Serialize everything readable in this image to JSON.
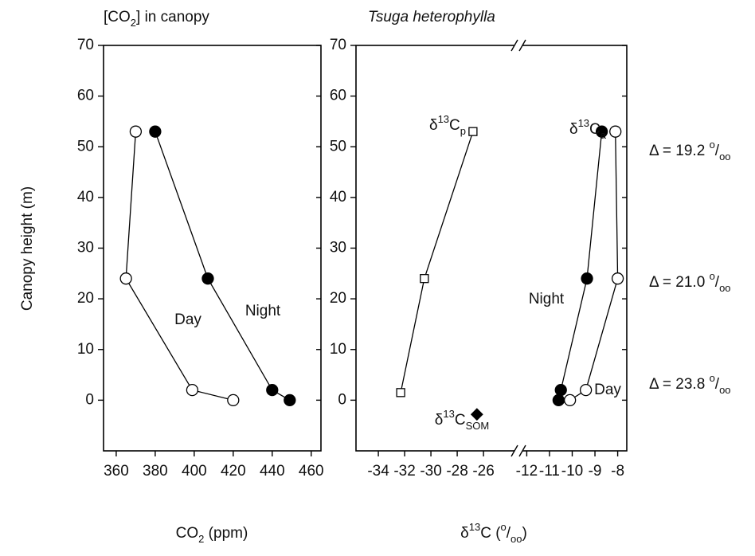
{
  "chart_data": [
    {
      "type": "line",
      "title": [
        {
          "text": "[CO"
        },
        {
          "text": "2",
          "script": "sub"
        },
        {
          "text": "] in canopy"
        }
      ],
      "x_label": [
        {
          "text": "CO"
        },
        {
          "text": "2",
          "script": "sub"
        },
        {
          "text": " (ppm)"
        }
      ],
      "y_label": "Canopy height (m)",
      "xlim": [
        353.5,
        465
      ],
      "xticks": [
        360,
        380,
        400,
        420,
        440,
        460
      ],
      "ylim": [
        -10,
        70
      ],
      "yticks": [
        0,
        10,
        20,
        30,
        40,
        50,
        60,
        70
      ],
      "series": [
        {
          "name": "Day",
          "marker": "open-circle",
          "color": "#000000",
          "x": [
            370,
            365,
            399,
            420
          ],
          "values": [
            53,
            24,
            2,
            0
          ]
        },
        {
          "name": "Night",
          "marker": "filled-circle",
          "color": "#000000",
          "x": [
            380,
            407,
            440,
            449
          ],
          "values": [
            53,
            24,
            2,
            0
          ]
        }
      ]
    },
    {
      "type": "line",
      "title": [
        {
          "text": "Tsuga heterophylla",
          "style": "italic"
        }
      ],
      "x_label": [
        {
          "text": "δ"
        },
        {
          "text": "13",
          "script": "sup"
        },
        {
          "text": "C ("
        },
        {
          "text": "o",
          "script": "sup"
        },
        {
          "text": "/"
        },
        {
          "text": "oo",
          "script": "sub"
        },
        {
          "text": ")"
        }
      ],
      "x_segments": [
        {
          "xlim": [
            -35.7,
            -23.4
          ],
          "xticks": [
            -34,
            -32,
            -30,
            -28,
            -26
          ]
        },
        {
          "xlim": [
            -12.4,
            -7.6
          ],
          "xticks": [
            -12,
            -11,
            -10,
            -9,
            -8
          ]
        }
      ],
      "axis_break": true,
      "ylim": [
        -10,
        70
      ],
      "yticks": [
        0,
        10,
        20,
        30,
        40,
        50,
        60,
        70
      ],
      "series": [
        {
          "label": [
            {
              "text": "δ"
            },
            {
              "text": "13",
              "script": "sup"
            },
            {
              "text": "C"
            },
            {
              "text": "p",
              "script": "sub"
            }
          ],
          "marker": "open-square",
          "color": "#000000",
          "segment": 0,
          "x": [
            -32.3,
            -30.5,
            -26.8
          ],
          "values": [
            1.5,
            24,
            53
          ]
        },
        {
          "name": "Night",
          "marker": "filled-circle",
          "color": "#000000",
          "segment": 1,
          "x": [
            -8.7,
            -9.35,
            -10.5,
            -10.6
          ],
          "values": [
            53,
            24,
            2,
            0
          ]
        },
        {
          "name": "Day",
          "marker": "open-circle",
          "color": "#000000",
          "segment": 1,
          "x": [
            -8.1,
            -8.0,
            -9.4,
            -10.1
          ],
          "values": [
            53,
            24,
            2,
            0
          ]
        },
        {
          "label": [
            {
              "text": "δ"
            },
            {
              "text": "13",
              "script": "sup"
            },
            {
              "text": "C"
            },
            {
              "text": "SOM",
              "script": "sub"
            }
          ],
          "marker": "filled-diamond",
          "color": "#000000",
          "segment": 0,
          "x": [
            -26.5
          ],
          "values": [
            -2.8
          ]
        }
      ],
      "annotations": [
        [
          {
            "text": "δ"
          },
          {
            "text": "13",
            "script": "sup"
          },
          {
            "text": "C"
          },
          {
            "text": "a",
            "script": "sub"
          }
        ],
        [
          {
            "text": "Δ = 19.2 "
          },
          {
            "text": "o",
            "script": "sup"
          },
          {
            "text": "/"
          },
          {
            "text": "oo",
            "script": "sub"
          }
        ],
        [
          {
            "text": "Δ = 21.0 "
          },
          {
            "text": "o",
            "script": "sup"
          },
          {
            "text": "/"
          },
          {
            "text": "oo",
            "script": "sub"
          }
        ],
        [
          {
            "text": "Δ = 23.8 "
          },
          {
            "text": "o",
            "script": "sup"
          },
          {
            "text": "/"
          },
          {
            "text": "oo",
            "script": "sub"
          }
        ]
      ]
    }
  ]
}
